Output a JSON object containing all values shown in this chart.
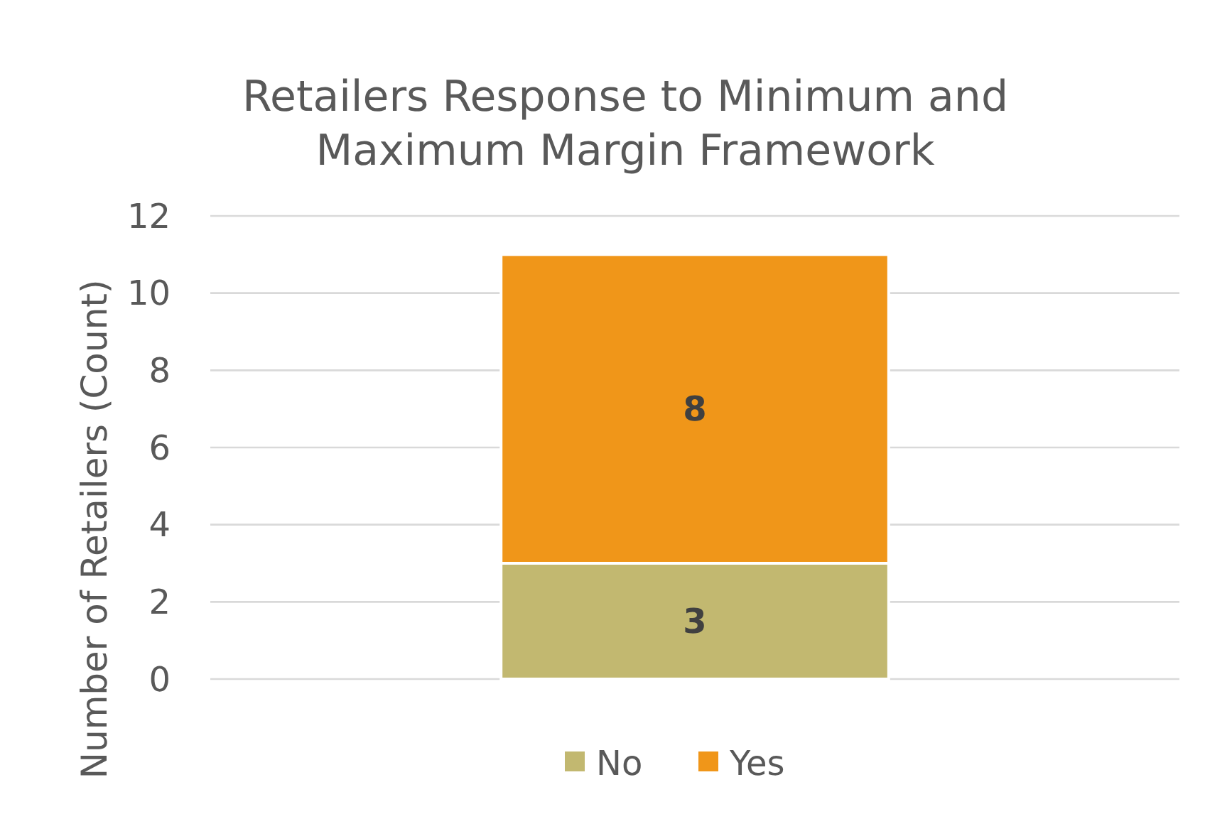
{
  "chart_data": {
    "type": "bar",
    "stacked": true,
    "title": "Retailers Response to Minimum and Maximum Margin Framework",
    "ylabel": "Number of Retailers (Count)",
    "categories": [
      null
    ],
    "series": [
      {
        "name": "No",
        "color": "#c2b870",
        "values": [
          3
        ]
      },
      {
        "name": "Yes",
        "color": "#f09619",
        "values": [
          8
        ]
      }
    ],
    "ylim": [
      0,
      12
    ],
    "yticks": [
      0,
      2,
      4,
      6,
      8,
      10,
      12
    ],
    "grid": "y",
    "legend": "bottom",
    "data_labels": true
  }
}
